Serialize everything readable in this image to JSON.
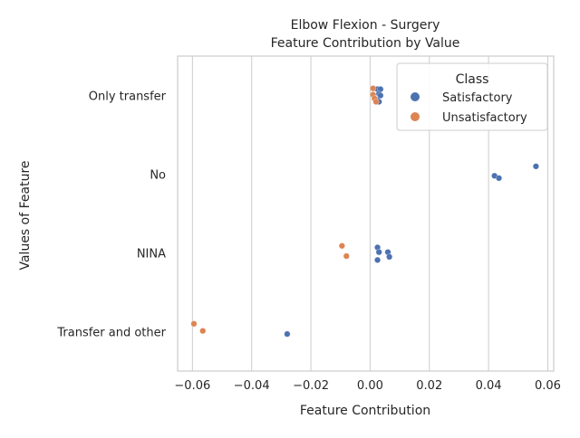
{
  "chart_data": {
    "type": "scatter",
    "title_line1": "Elbow Flexion - Surgery",
    "title_line2": "Feature Contribution by Value",
    "xlabel": "Feature Contribution",
    "ylabel": "Values of Feature",
    "xlim": [
      -0.065,
      0.062
    ],
    "xticks": [
      -0.06,
      -0.04,
      -0.02,
      0.0,
      0.02,
      0.04,
      0.06
    ],
    "xtick_labels": [
      "−0.06",
      "−0.04",
      "−0.02",
      "0.00",
      "0.02",
      "0.04",
      "0.06"
    ],
    "categories": [
      "Only transfer",
      "No",
      "NINA",
      "Transfer and other"
    ],
    "grid": "vertical",
    "legend": {
      "title": "Class",
      "placement": "top-right",
      "entries": [
        {
          "name": "Satisfactory",
          "color": "#4c72b0"
        },
        {
          "name": "Unsatisfactory",
          "color": "#dd8452"
        }
      ]
    },
    "series": [
      {
        "name": "Satisfactory",
        "color": "#4c72b0",
        "points": [
          {
            "category": "Only transfer",
            "x": 0.0025,
            "jitter": -0.08
          },
          {
            "category": "Only transfer",
            "x": 0.0035,
            "jitter": -0.08
          },
          {
            "category": "Only transfer",
            "x": 0.003,
            "jitter": -0.02
          },
          {
            "category": "Only transfer",
            "x": 0.0035,
            "jitter": 0.0
          },
          {
            "category": "Only transfer",
            "x": 0.0025,
            "jitter": 0.06
          },
          {
            "category": "Only transfer",
            "x": 0.003,
            "jitter": 0.08
          },
          {
            "category": "No",
            "x": 0.056,
            "jitter": -0.1
          },
          {
            "category": "No",
            "x": 0.042,
            "jitter": 0.02
          },
          {
            "category": "No",
            "x": 0.0435,
            "jitter": 0.05
          },
          {
            "category": "NINA",
            "x": 0.0025,
            "jitter": -0.07
          },
          {
            "category": "NINA",
            "x": 0.003,
            "jitter": -0.01
          },
          {
            "category": "NINA",
            "x": 0.006,
            "jitter": -0.01
          },
          {
            "category": "NINA",
            "x": 0.0065,
            "jitter": 0.05
          },
          {
            "category": "NINA",
            "x": 0.0025,
            "jitter": 0.09
          },
          {
            "category": "Transfer and other",
            "x": -0.028,
            "jitter": 0.03
          }
        ]
      },
      {
        "name": "Unsatisfactory",
        "color": "#dd8452",
        "points": [
          {
            "category": "Only transfer",
            "x": 0.001,
            "jitter": -0.09
          },
          {
            "category": "Only transfer",
            "x": 0.001,
            "jitter": -0.01
          },
          {
            "category": "Only transfer",
            "x": 0.0015,
            "jitter": 0.04
          },
          {
            "category": "Only transfer",
            "x": 0.002,
            "jitter": 0.08
          },
          {
            "category": "NINA",
            "x": -0.0095,
            "jitter": -0.09
          },
          {
            "category": "NINA",
            "x": -0.008,
            "jitter": 0.04
          },
          {
            "category": "Transfer and other",
            "x": -0.0595,
            "jitter": -0.1
          },
          {
            "category": "Transfer and other",
            "x": -0.0565,
            "jitter": -0.01
          }
        ]
      }
    ]
  }
}
